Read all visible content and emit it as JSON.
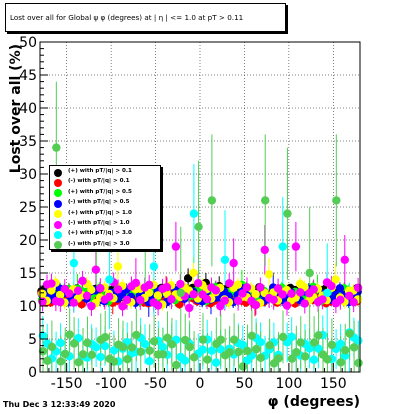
{
  "chart_data": {
    "type": "scatter",
    "title": "Lost over all for Global ψ φ (degrees) at | η | <= 1.0 at pT > 0.11",
    "xlabel": "φ (degrees)",
    "ylabel": "Lost over all (%)",
    "xlim": [
      -180,
      180
    ],
    "ylim": [
      0,
      50
    ],
    "x_ticks": [
      -150,
      -100,
      -50,
      0,
      50,
      100,
      150
    ],
    "y_ticks": [
      0,
      5,
      10,
      15,
      20,
      25,
      30,
      35,
      40,
      45,
      50
    ],
    "grid": true,
    "legend_position": "middle-left",
    "series": [
      {
        "name": "(+) with pT/|q| > 0.1",
        "color": "#000000",
        "band_center": 12.0,
        "band_spread": 0.6,
        "error": 0.6,
        "outliers": [
          [
            -15,
            14.2
          ],
          [
            5,
            13.5
          ],
          [
            20,
            13.0
          ]
        ]
      },
      {
        "name": "(-) with pT/|q| > 0.1",
        "color": "#ff0000",
        "band_center": 11.2,
        "band_spread": 0.7,
        "error": 0.7,
        "outliers": [
          [
            -100,
            10.5
          ],
          [
            -40,
            12.8
          ],
          [
            60,
            10.2
          ]
        ]
      },
      {
        "name": "(+) with pT/|q| > 0.5",
        "color": "#00ff00",
        "band_center": 11.8,
        "band_spread": 0.8,
        "error": 0.9,
        "outliers": [
          [
            -140,
            12.6
          ],
          [
            45,
            13.2
          ],
          [
            130,
            12.5
          ]
        ]
      },
      {
        "name": "(-) with pT/|q| > 0.5",
        "color": "#0000ff",
        "band_center": 11.6,
        "band_spread": 0.8,
        "error": 0.9,
        "outliers": [
          [
            -60,
            10.6
          ],
          [
            10,
            11.0
          ],
          [
            80,
            12.8
          ]
        ]
      },
      {
        "name": "(+) with pT/|q| > 1.0",
        "color": "#ffff00",
        "band_center": 11.9,
        "band_spread": 1.2,
        "error": 1.0,
        "outliers": [
          [
            -95,
            16.0
          ],
          [
            -10,
            15.0
          ],
          [
            75,
            14.8
          ],
          [
            150,
            14.0
          ]
        ]
      },
      {
        "name": "(-) with pT/|q| > 1.0",
        "color": "#ff00ff",
        "band_center": 11.8,
        "band_spread": 1.5,
        "error": 1.5,
        "outliers": [
          [
            -120,
            15.5
          ],
          [
            -75,
            13.5
          ],
          [
            -30,
            19.0
          ],
          [
            35,
            16.5
          ],
          [
            70,
            18.5
          ],
          [
            105,
            19.0
          ],
          [
            160,
            17.0
          ]
        ]
      },
      {
        "name": "(+) with pT/|q| > 3.0",
        "color": "#00ffff",
        "band_center": 3.5,
        "band_spread": 1.5,
        "error": 3.0,
        "outliers": [
          [
            -145,
            16.5
          ],
          [
            -105,
            14.0
          ],
          [
            -55,
            16.0
          ],
          [
            -10,
            24.0
          ],
          [
            25,
            17.0
          ],
          [
            90,
            19.0
          ],
          [
            140,
            12.0
          ],
          [
            165,
            6.0
          ]
        ]
      },
      {
        "name": "(-) with pT/|q| > 3.0",
        "color": "#55cc55",
        "band_center": 3.3,
        "band_spread": 1.8,
        "error": 4.0,
        "outliers": [
          [
            -165,
            34.0
          ],
          [
            -120,
            20.0
          ],
          [
            -65,
            21.0
          ],
          [
            -5,
            22.0
          ],
          [
            10,
            26.0
          ],
          [
            70,
            26.0
          ],
          [
            95,
            24.0
          ],
          [
            150,
            26.0
          ],
          [
            -25,
            12.0
          ],
          [
            120,
            15.0
          ]
        ]
      }
    ]
  },
  "footer": {
    "timestamp": "Thu Dec  3 12:33:49 2020"
  }
}
